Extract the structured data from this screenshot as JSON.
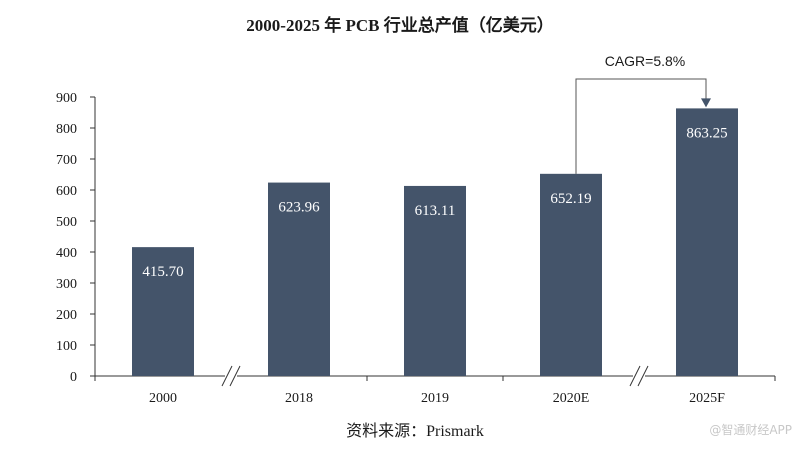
{
  "chart_data": {
    "type": "bar",
    "title": "2000-2025 年 PCB 行业总产值（亿美元）",
    "categories": [
      "2000",
      "2018",
      "2019",
      "2020E",
      "2025F"
    ],
    "values": [
      415.7,
      623.96,
      613.11,
      652.19,
      863.25
    ],
    "value_labels": [
      "415.70",
      "623.96",
      "613.11",
      "652.19",
      "863.25"
    ],
    "ylim": [
      0,
      900
    ],
    "yticks": [
      "0",
      "100",
      "200",
      "300",
      "400",
      "500",
      "600",
      "700",
      "800",
      "900"
    ],
    "xlabel": "",
    "ylabel": "",
    "grid": false,
    "bar_color": "#44546a",
    "annotation": {
      "text": "CAGR=5.8%",
      "from": "2020E",
      "to": "2025F"
    },
    "axis_breaks": [
      [
        "2000",
        "2018"
      ],
      [
        "2020E",
        "2025F"
      ]
    ]
  },
  "source": "资料来源：Prismark",
  "watermark": "@智通财经APP"
}
